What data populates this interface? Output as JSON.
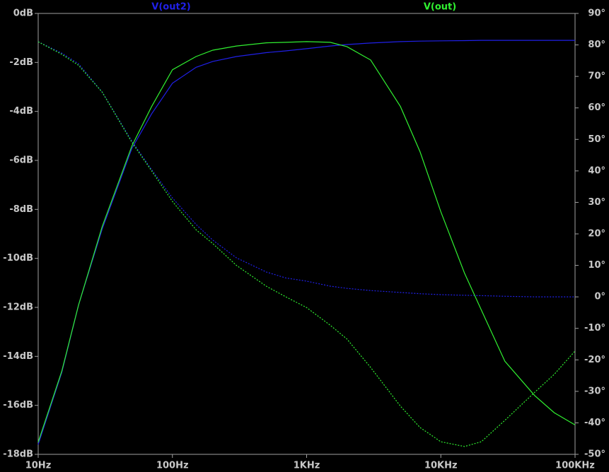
{
  "chart_data": {
    "type": "line",
    "x_scale": "log",
    "background": "#000000",
    "x": [
      10,
      15,
      20,
      30,
      50,
      70,
      100,
      150,
      200,
      300,
      500,
      700,
      1000,
      1500,
      2000,
      3000,
      5000,
      7000,
      10000,
      15000,
      20000,
      30000,
      50000,
      70000,
      100000
    ],
    "xlim": [
      10,
      100000
    ],
    "xticks": [
      {
        "value": 10,
        "label": "10Hz"
      },
      {
        "value": 100,
        "label": "100Hz"
      },
      {
        "value": 1000,
        "label": "1KHz"
      },
      {
        "value": 10000,
        "label": "10KHz"
      },
      {
        "value": 100000,
        "label": "100KHz"
      }
    ],
    "ylim": [
      -18,
      0
    ],
    "yticks": [
      {
        "value": 0,
        "label": "0dB"
      },
      {
        "value": -2,
        "label": "-2dB"
      },
      {
        "value": -4,
        "label": "-4dB"
      },
      {
        "value": -6,
        "label": "-6dB"
      },
      {
        "value": -8,
        "label": "-8dB"
      },
      {
        "value": -10,
        "label": "-10dB"
      },
      {
        "value": -12,
        "label": "-12dB"
      },
      {
        "value": -14,
        "label": "-14dB"
      },
      {
        "value": -16,
        "label": "-16dB"
      },
      {
        "value": -18,
        "label": "-18dB"
      }
    ],
    "y2lim": [
      -50,
      90
    ],
    "y2ticks": [
      {
        "value": 90,
        "label": "90°"
      },
      {
        "value": 80,
        "label": "80°"
      },
      {
        "value": 70,
        "label": "70°"
      },
      {
        "value": 60,
        "label": "60°"
      },
      {
        "value": 50,
        "label": "50°"
      },
      {
        "value": 40,
        "label": "40°"
      },
      {
        "value": 30,
        "label": "30°"
      },
      {
        "value": 20,
        "label": "20°"
      },
      {
        "value": 10,
        "label": "10°"
      },
      {
        "value": 0,
        "label": "0°"
      },
      {
        "value": -10,
        "label": "-10°"
      },
      {
        "value": -20,
        "label": "-20°"
      },
      {
        "value": -30,
        "label": "-30°"
      },
      {
        "value": -40,
        "label": "-40°"
      },
      {
        "value": -50,
        "label": "-50°"
      }
    ],
    "series": [
      {
        "name": "V(out2)",
        "color": "#2020e8",
        "values": [
          -17.6,
          -14.65,
          -11.9,
          -8.8,
          -5.5,
          -4.1,
          -2.85,
          -2.2,
          -1.96,
          -1.76,
          -1.6,
          -1.53,
          -1.44,
          -1.33,
          -1.27,
          -1.21,
          -1.15,
          -1.13,
          -1.12,
          -1.11,
          -1.1,
          -1.1,
          -1.1,
          -1.1,
          -1.1
        ],
        "y2_values": [
          81,
          77.4,
          74,
          65,
          49.4,
          40.4,
          31.4,
          23,
          18,
          12.4,
          7.9,
          6,
          5,
          3.4,
          2.7,
          2,
          1.4,
          1,
          0.7,
          0.5,
          0.4,
          0.2,
          0,
          0,
          0
        ]
      },
      {
        "name": "V(out)",
        "color": "#30f030",
        "values": [
          -17.5,
          -14.6,
          -11.9,
          -8.7,
          -5.4,
          -3.8,
          -2.3,
          -1.76,
          -1.5,
          -1.33,
          -1.2,
          -1.18,
          -1.15,
          -1.18,
          -1.36,
          -1.9,
          -3.8,
          -5.65,
          -8.1,
          -10.6,
          -12.1,
          -14.2,
          -15.6,
          -16.3,
          -16.8
        ],
        "y2_values": [
          81,
          77,
          73.5,
          65,
          49,
          40,
          30.3,
          21.3,
          16.9,
          10,
          3.4,
          0,
          -3.4,
          -9,
          -13.4,
          -22.4,
          -34.7,
          -41.5,
          -46,
          -47.5,
          -46,
          -39.2,
          -30.3,
          -24.6,
          -17.2
        ]
      }
    ]
  }
}
